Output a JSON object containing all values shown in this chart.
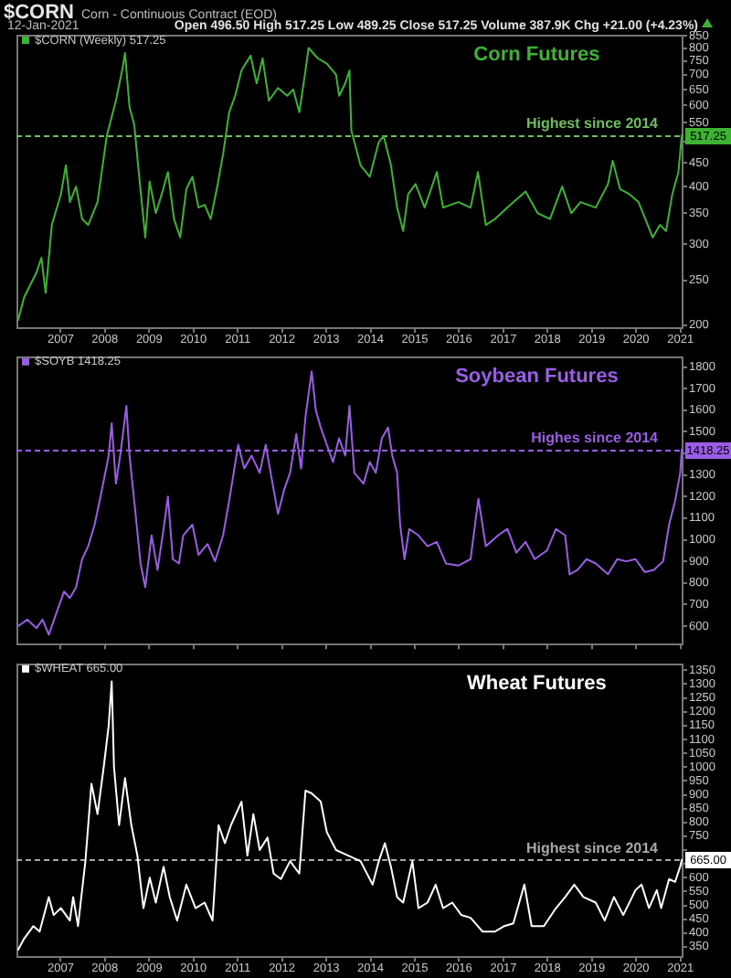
{
  "chart_data": [
    {
      "type": "line",
      "title": "Corn Futures",
      "x": [
        "2006-01-15",
        "2006-03-06",
        "2006-06-15",
        "2006-07-26",
        "2006-08-30",
        "2006-10-20",
        "2007-01-03",
        "2007-02-13",
        "2007-03-18",
        "2007-05-08",
        "2007-06-27",
        "2007-08-16",
        "2007-11-01",
        "2008-01-16",
        "2008-04-01",
        "2008-05-22",
        "2008-06-15",
        "2008-07-22",
        "2008-08-30",
        "2008-10-10",
        "2008-11-29",
        "2009-01-04",
        "2009-02-24",
        "2009-04-14",
        "2009-06-04",
        "2009-07-24",
        "2009-09-13",
        "2009-11-03",
        "2009-12-23",
        "2010-02-11",
        "2010-04-03",
        "2010-05-23",
        "2010-07-12",
        "2010-09-02",
        "2010-10-22",
        "2010-12-11",
        "2011-02-01",
        "2011-04-17",
        "2011-06-06",
        "2011-07-25",
        "2011-09-15",
        "2011-11-29",
        "2012-02-13",
        "2012-04-03",
        "2012-05-23",
        "2012-07-13",
        "2012-08-07",
        "2012-10-22",
        "2013-01-05",
        "2013-03-22",
        "2013-04-17",
        "2013-06-06",
        "2013-07-11",
        "2013-07-26",
        "2013-10-10",
        "2013-12-25",
        "2014-03-10",
        "2014-04-19",
        "2014-06-18",
        "2014-08-08",
        "2014-09-27",
        "2014-11-07",
        "2015-01-07",
        "2015-03-23",
        "2015-07-02",
        "2015-08-22",
        "2015-12-26",
        "2016-04-05",
        "2016-06-05",
        "2016-08-09",
        "2016-10-24",
        "2017-02-03",
        "2017-07-03",
        "2017-10-11",
        "2018-01-20",
        "2018-05-01",
        "2018-07-15",
        "2018-09-29",
        "2019-02-02",
        "2019-05-14",
        "2019-06-22",
        "2019-08-22",
        "2019-11-06",
        "2020-01-21",
        "2020-04-06",
        "2020-05-17",
        "2020-07-16",
        "2020-09-04",
        "2020-10-26",
        "2020-12-15",
        "2021-01-12"
      ],
      "series": [
        {
          "name": "$CORN (Weekly) 517.25",
          "color": "#3cb431",
          "values": [
            205,
            230,
            260,
            280,
            235,
            330,
            385,
            445,
            370,
            400,
            340,
            330,
            370,
            515,
            615,
            715,
            780,
            595,
            545,
            420,
            310,
            410,
            350,
            385,
            430,
            340,
            310,
            395,
            420,
            360,
            365,
            340,
            395,
            470,
            580,
            630,
            715,
            770,
            670,
            760,
            615,
            655,
            630,
            650,
            580,
            715,
            800,
            760,
            740,
            700,
            630,
            670,
            715,
            530,
            445,
            420,
            500,
            515,
            445,
            360,
            320,
            385,
            405,
            360,
            430,
            360,
            370,
            360,
            430,
            330,
            340,
            360,
            390,
            350,
            340,
            400,
            350,
            370,
            360,
            405,
            455,
            395,
            385,
            370,
            330,
            310,
            330,
            320,
            385,
            430,
            517.25
          ]
        }
      ],
      "xlim": [
        "2006-01-01",
        "2021-01-26"
      ],
      "xticks": [
        "2007",
        "2008",
        "2009",
        "2010",
        "2011",
        "2012",
        "2013",
        "2014",
        "2015",
        "2016",
        "2017",
        "2018",
        "2019",
        "2020",
        "2021"
      ],
      "ylim": [
        196,
        855
      ],
      "yticks": [
        200,
        250,
        300,
        350,
        400,
        450,
        {
          "value": 500,
          "label": null
        },
        550,
        600,
        650,
        700,
        750,
        800,
        850
      ],
      "log": "y",
      "legend": "top left",
      "ref_lines": [
        {
          "axis": "y",
          "value": 517.25,
          "label": "Highest since 2014",
          "color": "#6fbf5f",
          "line_style": "dashed"
        }
      ],
      "annotations": [
        "$CORN",
        "Corn - Continuous Contract (EOD)",
        "12-Jan-2021",
        "Open 496.50 High 517.25 Low 489.25 Close 517.25 Volume 387.9K Chg +21.00 (+4.23%)",
        {
          "text": "517.25",
          "x": "2021-01-12",
          "y": 517.25
        }
      ]
    },
    {
      "type": "line",
      "title": "Soybean Futures",
      "x": [
        "2006-01-15",
        "2006-04-01",
        "2006-06-15",
        "2006-08-04",
        "2006-09-25",
        "2006-12-09",
        "2007-01-29",
        "2007-03-18",
        "2007-05-08",
        "2007-06-27",
        "2007-08-16",
        "2007-10-08",
        "2007-11-26",
        "2008-02-01",
        "2008-02-26",
        "2008-04-01",
        "2008-05-11",
        "2008-06-26",
        "2008-07-22",
        "2008-08-30",
        "2008-10-21",
        "2008-11-29",
        "2009-01-20",
        "2009-03-10",
        "2009-04-29",
        "2009-06-04",
        "2009-07-14",
        "2009-09-03",
        "2009-10-08",
        "2009-12-23",
        "2010-02-11",
        "2010-04-27",
        "2010-06-27",
        "2010-09-02",
        "2010-10-22",
        "2011-01-05",
        "2011-02-24",
        "2011-04-25",
        "2011-07-01",
        "2011-08-20",
        "2011-10-09",
        "2011-11-29",
        "2012-01-18",
        "2012-03-08",
        "2012-04-28",
        "2012-06-07",
        "2012-07-13",
        "2012-09-02",
        "2012-10-06",
        "2012-11-16",
        "2013-01-05",
        "2013-02-25",
        "2013-04-16",
        "2013-06-06",
        "2013-07-11",
        "2013-08-20",
        "2013-11-04",
        "2013-12-25",
        "2014-02-13",
        "2014-04-04",
        "2014-05-25",
        "2014-06-29",
        "2014-08-08",
        "2014-09-02",
        "2014-10-08",
        "2014-11-16",
        "2015-01-31",
        "2015-04-16",
        "2015-07-01",
        "2015-09-15",
        "2015-12-26",
        "2016-04-05",
        "2016-06-09",
        "2016-08-09",
        "2016-11-18",
        "2017-02-03",
        "2017-04-18",
        "2017-07-03",
        "2017-09-17",
        "2017-12-26",
        "2018-03-11",
        "2018-05-26",
        "2018-07-01",
        "2018-09-04",
        "2018-11-18",
        "2019-02-02",
        "2019-05-14",
        "2019-07-29",
        "2019-10-12",
        "2019-12-27",
        "2020-03-13",
        "2020-05-27",
        "2020-08-11",
        "2020-09-29",
        "2020-11-18",
        "2020-12-30",
        "2021-01-12"
      ],
      "series": [
        {
          "name": "$SOYB 1418.25",
          "color": "#9b5de5",
          "values": [
            600,
            630,
            590,
            630,
            560,
            680,
            760,
            730,
            780,
            910,
            970,
            1070,
            1200,
            1390,
            1540,
            1260,
            1410,
            1620,
            1390,
            1180,
            890,
            780,
            1020,
            860,
            1050,
            1200,
            910,
            890,
            1020,
            1070,
            930,
            980,
            900,
            1020,
            1180,
            1440,
            1330,
            1390,
            1310,
            1440,
            1280,
            1120,
            1230,
            1310,
            1490,
            1330,
            1570,
            1780,
            1600,
            1520,
            1440,
            1360,
            1470,
            1390,
            1620,
            1310,
            1260,
            1360,
            1310,
            1470,
            1520,
            1390,
            1310,
            1070,
            910,
            1050,
            1020,
            970,
            990,
            890,
            880,
            910,
            1190,
            970,
            1020,
            1050,
            940,
            990,
            910,
            950,
            1050,
            1020,
            840,
            860,
            910,
            890,
            840,
            910,
            900,
            910,
            850,
            860,
            900,
            1070,
            1180,
            1310,
            1418.25
          ]
        }
      ],
      "xlim": [
        "2006-01-01",
        "2021-01-26"
      ],
      "xticks": [
        "2007",
        "2008",
        "2009",
        "2010",
        "2011",
        "2012",
        "2013",
        "2014",
        "2015",
        "2016",
        "2017",
        "2018",
        "2019",
        "2020",
        "2021"
      ],
      "ylim": [
        510,
        1850
      ],
      "yticks": [
        600,
        700,
        800,
        900,
        1000,
        1100,
        1200,
        1300,
        {
          "value": 1400,
          "label": null
        },
        1500,
        1600,
        1700,
        1800
      ],
      "tick_labels": "y",
      "legend": "top left",
      "ref_lines": [
        {
          "axis": "y",
          "value": 1418.25,
          "label": "Highes since 2014",
          "color": "#9b5de5",
          "line_style": "dashed"
        }
      ],
      "annotations": [
        {
          "text": "1418.25",
          "x": "2021-01-12",
          "y": 1418.25
        }
      ]
    },
    {
      "type": "line",
      "title": "Wheat Futures",
      "x": [
        "2006-01-15",
        "2006-03-06",
        "2006-05-21",
        "2006-07-11",
        "2006-09-25",
        "2006-11-04",
        "2007-01-03",
        "2007-03-18",
        "2007-04-14",
        "2007-05-24",
        "2007-07-24",
        "2007-09-12",
        "2007-11-01",
        "2007-12-22",
        "2008-02-01",
        "2008-02-26",
        "2008-03-16",
        "2008-04-27",
        "2008-06-15",
        "2008-08-06",
        "2008-09-25",
        "2008-11-14",
        "2009-01-05",
        "2009-02-24",
        "2009-04-29",
        "2009-06-19",
        "2009-08-19",
        "2009-11-03",
        "2010-01-18",
        "2010-04-03",
        "2010-06-07",
        "2010-07-27",
        "2010-09-17",
        "2010-11-06",
        "2011-02-01",
        "2011-03-22",
        "2011-05-10",
        "2011-07-01",
        "2011-09-04",
        "2011-10-24",
        "2011-12-23",
        "2012-03-08",
        "2012-05-23",
        "2012-07-13",
        "2012-09-02",
        "2012-11-16",
        "2013-01-05",
        "2013-03-22",
        "2013-07-01",
        "2013-10-10",
        "2014-01-18",
        "2014-03-10",
        "2014-04-29",
        "2014-06-18",
        "2014-08-08",
        "2014-09-27",
        "2014-12-12",
        "2015-01-31",
        "2015-04-16",
        "2015-06-22",
        "2015-08-22",
        "2015-11-06",
        "2016-01-20",
        "2016-04-05",
        "2016-07-14",
        "2016-10-24",
        "2017-01-08",
        "2017-03-24",
        "2017-06-23",
        "2017-08-22",
        "2017-12-01",
        "2018-03-11",
        "2018-05-26",
        "2018-08-09",
        "2018-10-23",
        "2019-02-02",
        "2019-04-17",
        "2019-07-02",
        "2019-09-17",
        "2019-12-27",
        "2020-02-15",
        "2020-04-16",
        "2020-06-20",
        "2020-07-26",
        "2020-09-29",
        "2020-11-18",
        "2020-12-30",
        "2021-01-12"
      ],
      "series": [
        {
          "name": "$WHEAT 665.00",
          "color": "#ffffff",
          "values": [
            340,
            380,
            425,
            405,
            530,
            465,
            490,
            445,
            530,
            425,
            660,
            940,
            830,
            1000,
            1150,
            1310,
            1000,
            790,
            960,
            790,
            680,
            490,
            600,
            510,
            640,
            530,
            445,
            575,
            490,
            510,
            445,
            790,
            725,
            790,
            875,
            680,
            830,
            700,
            745,
            615,
            595,
            660,
            615,
            915,
            905,
            875,
            765,
            700,
            680,
            660,
            575,
            660,
            725,
            640,
            530,
            510,
            660,
            490,
            510,
            575,
            490,
            510,
            465,
            455,
            405,
            405,
            425,
            435,
            575,
            425,
            425,
            490,
            530,
            575,
            530,
            510,
            445,
            530,
            465,
            555,
            575,
            490,
            555,
            490,
            595,
            585,
            640,
            665
          ]
        }
      ],
      "xlim": [
        "2006-01-01",
        "2021-01-26"
      ],
      "xticks": [
        "2007",
        "2008",
        "2009",
        "2010",
        "2011",
        "2012",
        "2013",
        "2014",
        "2015",
        "2016",
        "2017",
        "2018",
        "2019",
        "2020",
        "2021"
      ],
      "ylim": [
        310,
        1375
      ],
      "yticks": [
        350,
        400,
        450,
        500,
        550,
        600,
        {
          "value": 650,
          "label": null
        },
        {
          "value": 700,
          "label": null
        },
        750,
        800,
        850,
        900,
        950,
        1000,
        1050,
        1100,
        1150,
        1200,
        1250,
        1300,
        1350
      ],
      "legend": "top left",
      "ref_lines": [
        {
          "axis": "y",
          "value": 665,
          "label": "Highest since 2014",
          "color": "#a8a8a8",
          "line_style": "dashed"
        }
      ],
      "annotations": [
        {
          "text": "665.00",
          "x": "2021-01-12",
          "y": 665
        }
      ]
    }
  ]
}
